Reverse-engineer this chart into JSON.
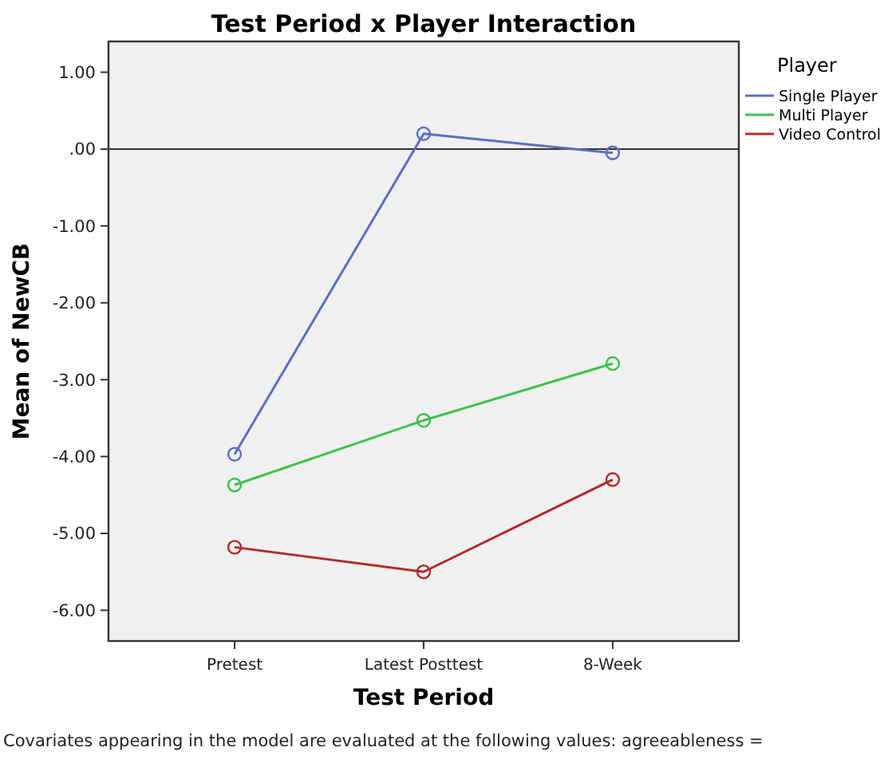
{
  "chart_data": {
    "type": "line",
    "title": "Test Period x Player Interaction",
    "xlabel": "Test Period",
    "ylabel": "Mean of NewCB",
    "legend_title": "Player",
    "categories": [
      "Pretest",
      "Latest Posttest",
      "8-Week"
    ],
    "series": [
      {
        "name": "Single Player",
        "color": "#5b6fc4",
        "values": [
          -3.97,
          0.2,
          -0.05
        ]
      },
      {
        "name": "Multi Player",
        "color": "#3cc24a",
        "values": [
          -4.37,
          -3.53,
          -2.79
        ]
      },
      {
        "name": "Video Control",
        "color": "#b22a2a",
        "values": [
          -5.18,
          -5.5,
          -4.3
        ]
      }
    ],
    "ylim": [
      -6.4,
      1.4
    ],
    "yticks": [
      {
        "value": 1,
        "label": "1.00"
      },
      {
        "value": 0,
        "label": ".00"
      },
      {
        "value": -1,
        "label": "-1.00"
      },
      {
        "value": -2,
        "label": "-2.00"
      },
      {
        "value": -3,
        "label": "-3.00"
      },
      {
        "value": -4,
        "label": "-4.00"
      },
      {
        "value": -5,
        "label": "-5.00"
      },
      {
        "value": -6,
        "label": "-6.00"
      }
    ],
    "ref_lines": [
      {
        "axis": "y",
        "value": 0,
        "color": "#333333"
      }
    ],
    "grid": false,
    "legend": "right",
    "marker": "circle",
    "line_style": "solid",
    "annotations": [
      "Covariates appearing in the model are evaluated at the following values: agreeableness ="
    ]
  }
}
